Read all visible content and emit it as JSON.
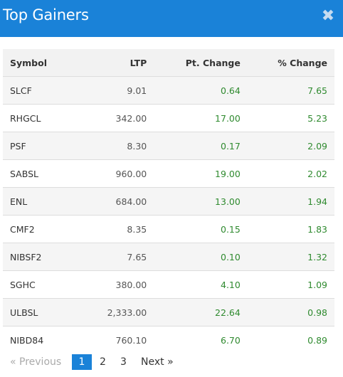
{
  "modal": {
    "title": "Top Gainers",
    "close_symbol": "✖"
  },
  "table": {
    "headers": {
      "symbol": "Symbol",
      "ltp": "LTP",
      "pt_change": "Pt. Change",
      "pct_change": "% Change"
    },
    "rows": [
      {
        "symbol": "SLCF",
        "ltp": "9.01",
        "pt_change": "0.64",
        "pct_change": "7.65"
      },
      {
        "symbol": "RHGCL",
        "ltp": "342.00",
        "pt_change": "17.00",
        "pct_change": "5.23"
      },
      {
        "symbol": "PSF",
        "ltp": "8.30",
        "pt_change": "0.17",
        "pct_change": "2.09"
      },
      {
        "symbol": "SABSL",
        "ltp": "960.00",
        "pt_change": "19.00",
        "pct_change": "2.02"
      },
      {
        "symbol": "ENL",
        "ltp": "684.00",
        "pt_change": "13.00",
        "pct_change": "1.94"
      },
      {
        "symbol": "CMF2",
        "ltp": "8.35",
        "pt_change": "0.15",
        "pct_change": "1.83"
      },
      {
        "symbol": "NIBSF2",
        "ltp": "7.65",
        "pt_change": "0.10",
        "pct_change": "1.32"
      },
      {
        "symbol": "SGHC",
        "ltp": "380.00",
        "pt_change": "4.10",
        "pct_change": "1.09"
      },
      {
        "symbol": "ULBSL",
        "ltp": "2,333.00",
        "pt_change": "22.64",
        "pct_change": "0.98"
      },
      {
        "symbol": "NIBD84",
        "ltp": "760.10",
        "pt_change": "6.70",
        "pct_change": "0.89"
      }
    ]
  },
  "pagination": {
    "previous": "« Previous",
    "pages": [
      "1",
      "2",
      "3"
    ],
    "current": "1",
    "next": "Next »"
  },
  "colors": {
    "header_bg": "#1a82d8",
    "gain_text": "#2f8a2f",
    "active_page_bg": "#1a82d8"
  }
}
